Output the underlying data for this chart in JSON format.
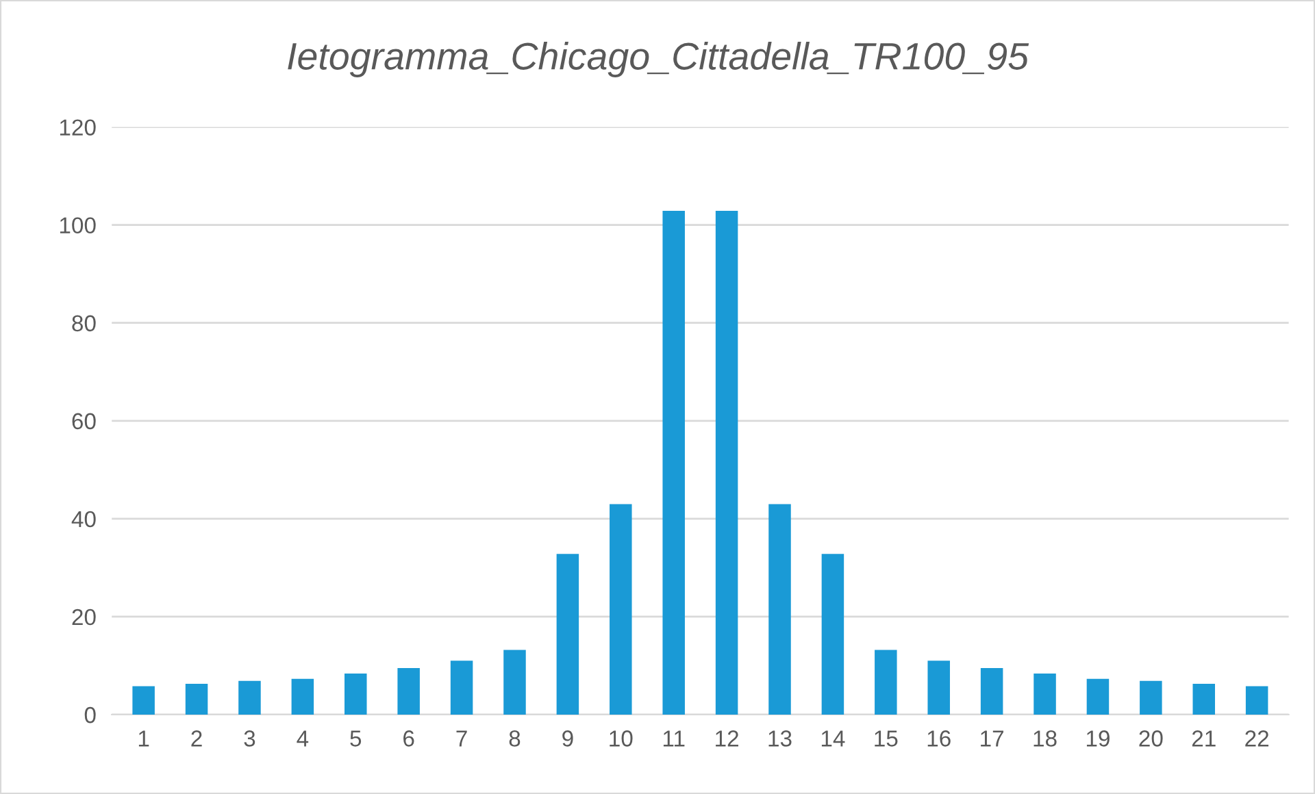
{
  "chart_data": {
    "type": "bar",
    "title": "Ietogramma_Chicago_Cittadella_TR100_95",
    "categories": [
      "1",
      "2",
      "3",
      "4",
      "5",
      "6",
      "7",
      "8",
      "9",
      "10",
      "11",
      "12",
      "13",
      "14",
      "15",
      "16",
      "17",
      "18",
      "19",
      "20",
      "21",
      "22"
    ],
    "values": [
      5.8,
      6.3,
      6.9,
      7.3,
      8.4,
      9.5,
      11,
      13.2,
      32.8,
      43,
      102.9,
      102.9,
      43,
      32.8,
      13.2,
      11,
      9.5,
      8.4,
      7.3,
      6.9,
      6.3,
      5.8
    ],
    "color": "#1a9ad6",
    "ylim": [
      0,
      120
    ],
    "yticks": [
      0,
      20,
      40,
      60,
      80,
      100,
      120
    ],
    "grid": "y"
  }
}
